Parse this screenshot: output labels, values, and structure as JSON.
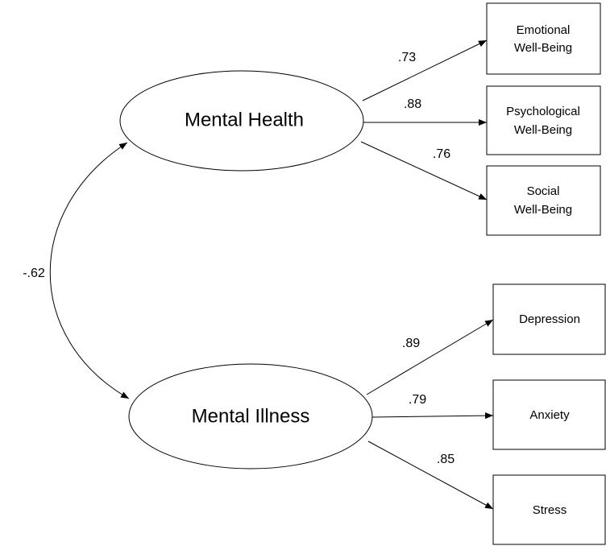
{
  "latent": [
    {
      "label": "Mental Health"
    },
    {
      "label": "Mental Illness"
    }
  ],
  "indicators": [
    {
      "lines": [
        "Emotional",
        "Well-Being"
      ]
    },
    {
      "lines": [
        "Psychological",
        "Well-Being"
      ]
    },
    {
      "lines": [
        "Social",
        "Well-Being"
      ]
    },
    {
      "lines": [
        "Depression"
      ]
    },
    {
      "lines": [
        "Anxiety"
      ]
    },
    {
      "lines": [
        "Stress"
      ]
    }
  ],
  "loadings": [
    ".73",
    ".88",
    ".76",
    ".89",
    ".79",
    ".85"
  ],
  "correlation": "-.62"
}
